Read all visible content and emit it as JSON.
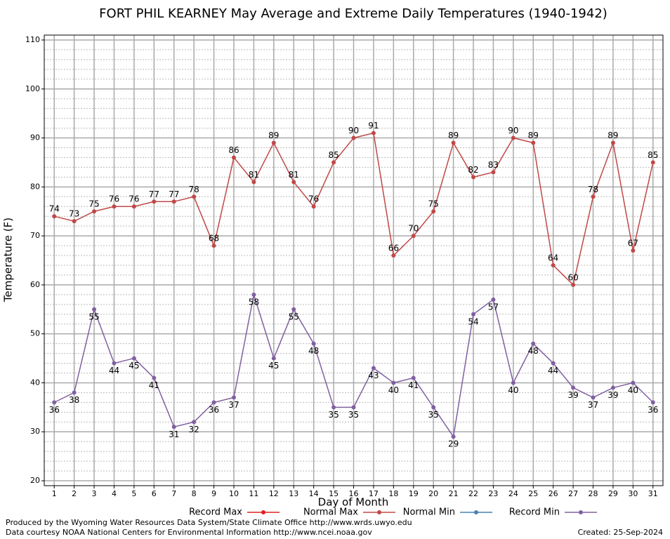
{
  "chart_data": {
    "type": "line",
    "title": "FORT PHIL KEARNEY May Average and Extreme Daily Temperatures (1940-1942)",
    "x_label": "Day of Month",
    "y_label": "Temperature (F)",
    "x": [
      1,
      2,
      3,
      4,
      5,
      6,
      7,
      8,
      9,
      10,
      11,
      12,
      13,
      14,
      15,
      16,
      17,
      18,
      19,
      20,
      21,
      22,
      23,
      24,
      25,
      26,
      27,
      28,
      29,
      30,
      31
    ],
    "xlim": [
      0.5,
      31.5
    ],
    "xticks": [
      1,
      2,
      3,
      4,
      5,
      6,
      7,
      8,
      9,
      10,
      11,
      12,
      13,
      14,
      15,
      16,
      17,
      18,
      19,
      20,
      21,
      22,
      23,
      24,
      25,
      26,
      27,
      28,
      29,
      30,
      31
    ],
    "ylim": [
      19,
      111
    ],
    "yticks": [
      20,
      30,
      40,
      50,
      60,
      70,
      80,
      90,
      100,
      110
    ],
    "grid": true,
    "legend": "bottom",
    "series": [
      {
        "name": "Record Max",
        "color": "#e02020",
        "values": [
          null,
          null,
          null,
          null,
          null,
          null,
          null,
          null,
          null,
          null,
          null,
          null,
          null,
          null,
          null,
          null,
          null,
          null,
          null,
          null,
          null,
          null,
          null,
          null,
          null,
          null,
          null,
          null,
          null,
          null,
          null
        ]
      },
      {
        "name": "Normal Max",
        "color": "#c04848",
        "values": [
          74,
          73,
          75,
          76,
          76,
          77,
          77,
          78,
          68,
          86,
          81,
          89,
          81,
          76,
          85,
          90,
          91,
          66,
          70,
          75,
          89,
          82,
          83,
          90,
          89,
          64,
          60,
          78,
          89,
          67,
          85
        ]
      },
      {
        "name": "Normal Min",
        "color": "#4682b4",
        "values": [
          null,
          null,
          null,
          null,
          null,
          null,
          null,
          null,
          null,
          null,
          null,
          null,
          null,
          null,
          null,
          null,
          null,
          null,
          null,
          null,
          null,
          null,
          null,
          null,
          null,
          null,
          null,
          null,
          null,
          null,
          null
        ]
      },
      {
        "name": "Record Min",
        "color": "#8060a0",
        "values": [
          36,
          38,
          55,
          44,
          45,
          41,
          31,
          32,
          36,
          37,
          58,
          45,
          55,
          48,
          35,
          35,
          43,
          40,
          41,
          35,
          29,
          54,
          57,
          40,
          48,
          44,
          39,
          37,
          39,
          40,
          36
        ]
      }
    ],
    "footer_left": [
      "Produced by the Wyoming Water Resources Data System/State Climate Office http://www.wrds.uwyo.edu",
      "Data courtesy NOAA National Centers for Environmental Information http://www.ncei.noaa.gov"
    ],
    "footer_right": "Created:  25-Sep-2024"
  }
}
